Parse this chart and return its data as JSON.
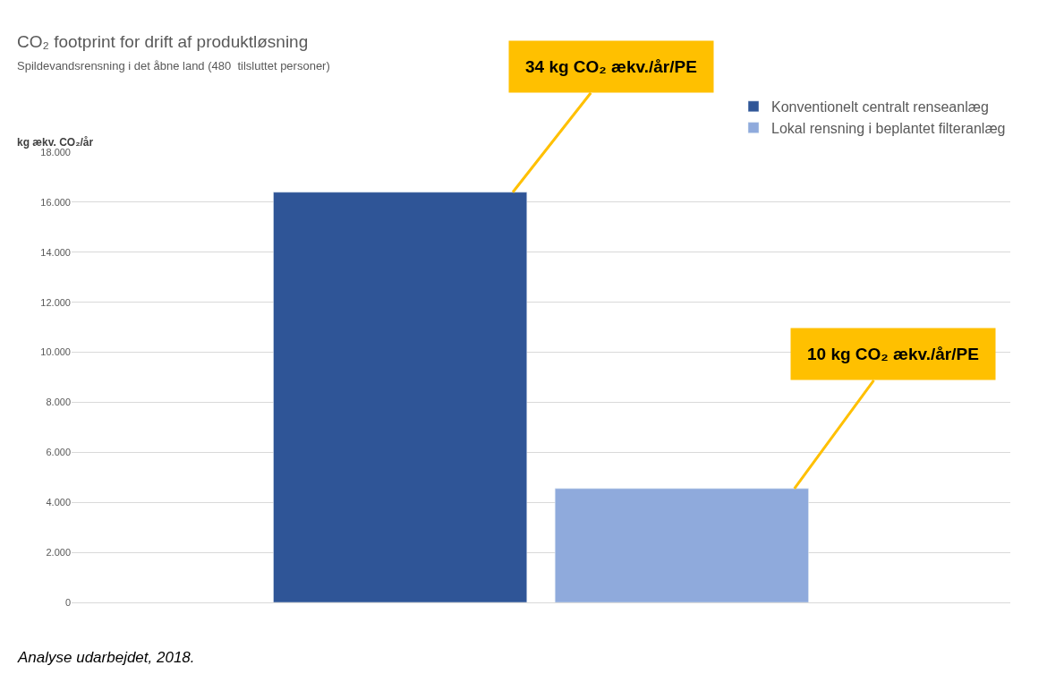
{
  "chart_data": {
    "type": "bar",
    "title": "CO₂ footprint for drift af produktløsning",
    "subtitle": "Spildevandsrensning i det åbne land (480  tilsluttet personer)",
    "ylabel": "kg ækv. CO₂/år",
    "categories": [
      null
    ],
    "series": [
      {
        "name": "Konventionelt centralt renseanlæg",
        "color": "#2f5597",
        "values": [
          16400
        ]
      },
      {
        "name": "Lokal rensning i beplantet filteranlæg",
        "color": "#8faadc",
        "values": [
          4550
        ]
      }
    ],
    "ylim": [
      0,
      18000
    ],
    "yticks": [
      0,
      {
        "value": 2000,
        "label": "2.000"
      },
      {
        "value": 4000,
        "label": "4.000"
      },
      {
        "value": 6000,
        "label": "6.000"
      },
      {
        "value": 8000,
        "label": "8.000"
      },
      {
        "value": 10000,
        "label": "10.000"
      },
      {
        "value": 12000,
        "label": "12.000"
      },
      {
        "value": 14000,
        "label": "14.000"
      },
      {
        "value": 16000,
        "label": "16.000"
      },
      {
        "value": 18000,
        "label": "18.000"
      }
    ],
    "grid": "y",
    "legend": "top right",
    "annotations": [
      "34 kg CO₂ ækv./år/PE",
      "10 kg CO₂ ækv./år/PE",
      "Analyse udarbejdet, 2018."
    ]
  }
}
